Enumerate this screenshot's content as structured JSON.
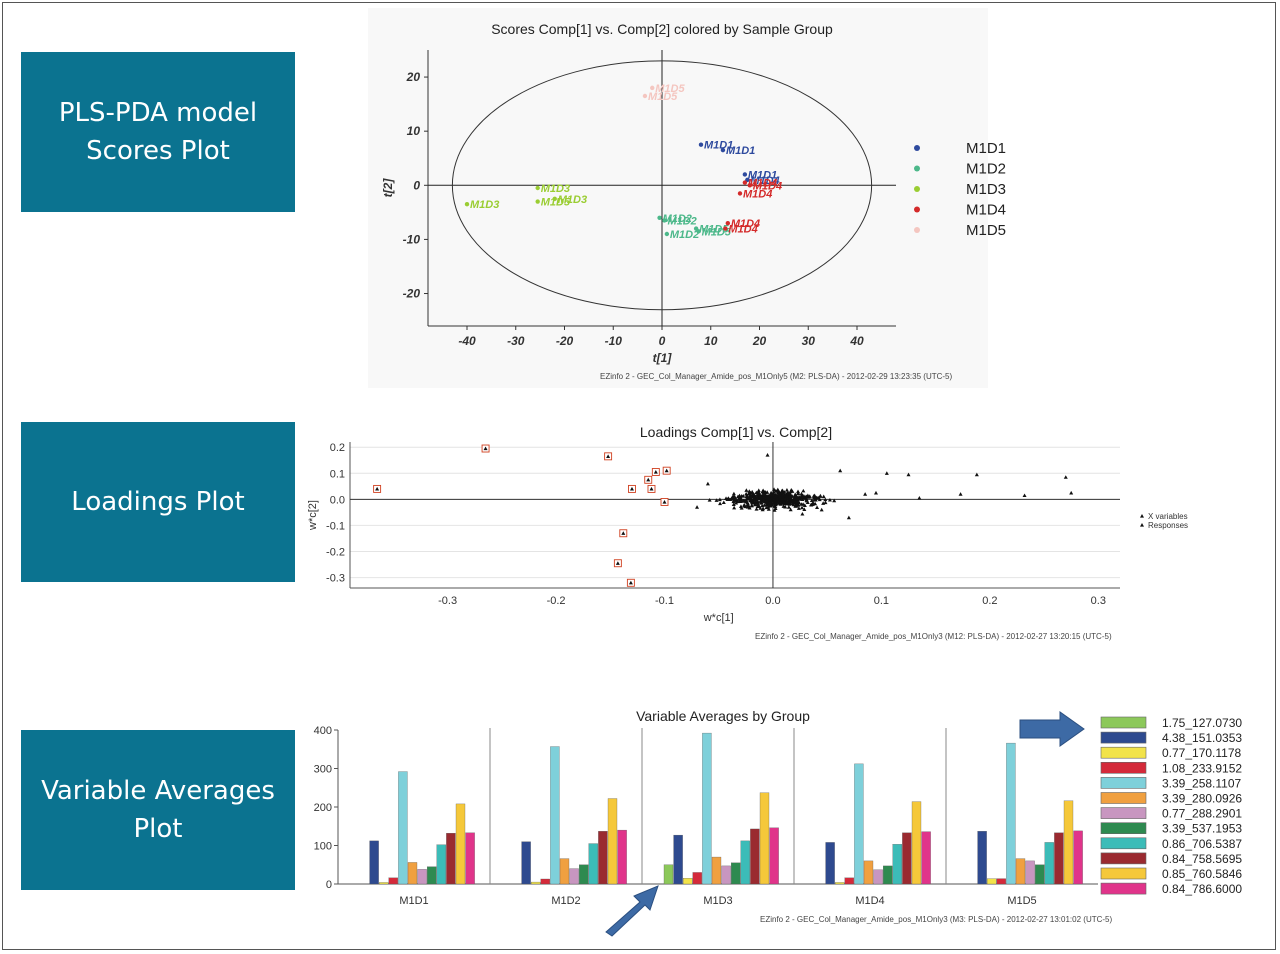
{
  "labels": {
    "scores": [
      "PLS-PDA model",
      "Scores Plot"
    ],
    "loadings": [
      "Loadings Plot"
    ],
    "averages": [
      "Variable Averages",
      "Plot"
    ]
  },
  "colors": {
    "label_bg": "#0b7390",
    "arrow": "#3d6aa5"
  },
  "chart_data": [
    {
      "type": "scatter",
      "title": "Scores Comp[1] vs. Comp[2] colored by Sample Group",
      "xlabel": "t[1]",
      "ylabel": "t[2]",
      "xlim": [
        -48,
        48
      ],
      "ylim": [
        -26,
        25
      ],
      "xticks": [
        -40,
        -30,
        -20,
        -10,
        0,
        10,
        20,
        30,
        40
      ],
      "yticks": [
        -20,
        -10,
        0,
        10,
        20
      ],
      "ellipse": {
        "center": [
          0,
          0
        ],
        "rx": 43,
        "ry": 23
      },
      "legend_position": "right",
      "footer": "EZinfo 2 - GEC_Col_Manager_Amide_pos_M1Only5 (M2: PLS-DA) - 2012-02-29 13:23:35 (UTC-5)",
      "series": [
        {
          "name": "M1D1",
          "color": "#2e4a9e",
          "points": [
            {
              "x": 8,
              "y": 7.5,
              "label": "M1D1"
            },
            {
              "x": 12.5,
              "y": 6.5,
              "label": "M1D1"
            },
            {
              "x": 17,
              "y": 2,
              "label": "M1D1"
            },
            {
              "x": 17.5,
              "y": 1,
              "label": "M1D4"
            }
          ]
        },
        {
          "name": "M1D2",
          "color": "#4cb88a",
          "points": [
            {
              "x": -0.5,
              "y": -6,
              "label": "M1D2"
            },
            {
              "x": 0.5,
              "y": -6.5,
              "label": "M1D2"
            },
            {
              "x": 1,
              "y": -9,
              "label": "M1D2"
            },
            {
              "x": 7,
              "y": -8,
              "label": "M1D5"
            },
            {
              "x": 7.5,
              "y": -8.5,
              "label": "M1D5"
            }
          ]
        },
        {
          "name": "M1D3",
          "color": "#9acd32",
          "points": [
            {
              "x": -40,
              "y": -3.5,
              "label": "M1D3"
            },
            {
              "x": -25.5,
              "y": -0.5,
              "label": "M1D3"
            },
            {
              "x": -25.5,
              "y": -3,
              "label": "M1D5"
            },
            {
              "x": -22,
              "y": -2.5,
              "label": "M1D3"
            }
          ]
        },
        {
          "name": "M1D4",
          "color": "#d42a2a",
          "points": [
            {
              "x": 17,
              "y": 0.5,
              "label": "M1D4"
            },
            {
              "x": 18,
              "y": 0,
              "label": "M1D4"
            },
            {
              "x": 16,
              "y": -1.5,
              "label": "M1D4"
            },
            {
              "x": 13.5,
              "y": -7,
              "label": "M1D4"
            },
            {
              "x": 13,
              "y": -8,
              "label": "M1D4"
            }
          ]
        },
        {
          "name": "M1D5",
          "color": "#f4c6c0",
          "points": [
            {
              "x": -2,
              "y": 18,
              "label": "M1D5"
            },
            {
              "x": -3.5,
              "y": 16.5,
              "label": "M1D5"
            }
          ]
        }
      ]
    },
    {
      "type": "scatter",
      "title": "Loadings Comp[1] vs. Comp[2]",
      "xlabel": "w*c[1]",
      "ylabel": "w*c[2]",
      "xlim": [
        -0.39,
        0.32
      ],
      "ylim": [
        -0.34,
        0.22
      ],
      "xticks": [
        -0.3,
        -0.2,
        -0.1,
        -0.0,
        0.1,
        0.2,
        0.3
      ],
      "yticks": [
        0.2,
        0.1,
        -0.0,
        -0.1,
        -0.2,
        -0.3
      ],
      "legend": [
        "X variables",
        "Responses"
      ],
      "legend_position": "right",
      "footer": "EZinfo 2 - GEC_Col_Manager_Amide_pos_M1Only3 (M12: PLS-DA) - 2012-02-27 13:20:15 (UTC-5)",
      "highlighted_points": [
        {
          "x": -0.365,
          "y": 0.04
        },
        {
          "x": -0.265,
          "y": 0.195
        },
        {
          "x": -0.152,
          "y": 0.165
        },
        {
          "x": -0.13,
          "y": 0.04
        },
        {
          "x": -0.115,
          "y": 0.075
        },
        {
          "x": -0.112,
          "y": 0.04
        },
        {
          "x": -0.108,
          "y": 0.105
        },
        {
          "x": -0.098,
          "y": 0.11
        },
        {
          "x": -0.1,
          "y": -0.01
        },
        {
          "x": -0.138,
          "y": -0.13
        },
        {
          "x": -0.143,
          "y": -0.245
        },
        {
          "x": -0.131,
          "y": -0.32
        }
      ],
      "outlier_points": [
        {
          "x": 0.275,
          "y": 0.025
        },
        {
          "x": 0.27,
          "y": 0.085
        },
        {
          "x": 0.232,
          "y": 0.015
        },
        {
          "x": 0.188,
          "y": 0.095
        },
        {
          "x": 0.173,
          "y": 0.02
        },
        {
          "x": 0.135,
          "y": 0.005
        },
        {
          "x": 0.125,
          "y": 0.095
        },
        {
          "x": 0.105,
          "y": 0.1
        },
        {
          "x": 0.095,
          "y": 0.025
        },
        {
          "x": 0.085,
          "y": 0.02
        },
        {
          "x": 0.062,
          "y": 0.11
        },
        {
          "x": -0.005,
          "y": 0.17
        },
        {
          "x": -0.07,
          "y": -0.03
        },
        {
          "x": -0.06,
          "y": 0.06
        },
        {
          "x": 0.07,
          "y": -0.07
        }
      ],
      "cluster": {
        "center": [
          0.0,
          0.0
        ],
        "spread_x": 0.028,
        "spread_y": 0.022,
        "count": 520
      }
    },
    {
      "type": "bar",
      "title": "Variable Averages by Group",
      "categories": [
        "M1D1",
        "M1D2",
        "M1D3",
        "M1D4",
        "M1D5"
      ],
      "ylim": [
        0,
        400
      ],
      "yticks": [
        0,
        100,
        200,
        300,
        400
      ],
      "legend_position": "right",
      "footer": "EZinfo 2 - GEC_Col_Manager_Amide_pos_M1Only3 (M3: PLS-DA) - 2012-02-27 13:01:02 (UTC-5)",
      "series": [
        {
          "name": "1.75_127.0730",
          "color": "#8cc85a",
          "values": [
            0,
            0,
            50,
            0,
            0
          ]
        },
        {
          "name": "4.38_151.0353",
          "color": "#2e4a8f",
          "values": [
            112,
            110,
            127,
            108,
            137
          ]
        },
        {
          "name": "0.77_170.1178",
          "color": "#f2e34a",
          "values": [
            4,
            5,
            15,
            4,
            14
          ]
        },
        {
          "name": "1.08_233.9152",
          "color": "#d42a3a",
          "values": [
            16,
            13,
            30,
            16,
            14
          ]
        },
        {
          "name": "3.39_258.1107",
          "color": "#7ed0da",
          "values": [
            292,
            357,
            392,
            312,
            366
          ]
        },
        {
          "name": "3.39_280.0926",
          "color": "#f0a040",
          "values": [
            56,
            66,
            70,
            60,
            66
          ]
        },
        {
          "name": "0.77_288.2901",
          "color": "#c896c0",
          "values": [
            38,
            40,
            47,
            37,
            60
          ]
        },
        {
          "name": "3.39_537.1953",
          "color": "#2e8a50",
          "values": [
            45,
            50,
            55,
            47,
            50
          ]
        },
        {
          "name": "0.86_706.5387",
          "color": "#3cbcb8",
          "values": [
            102,
            105,
            112,
            103,
            108
          ]
        },
        {
          "name": "0.84_758.5695",
          "color": "#9a2a30",
          "values": [
            132,
            137,
            143,
            133,
            133
          ]
        },
        {
          "name": "0.85_760.5846",
          "color": "#f5c83a",
          "values": [
            208,
            222,
            237,
            214,
            216
          ]
        },
        {
          "name": "0.84_786.6000",
          "color": "#e0348a",
          "values": [
            133,
            140,
            146,
            136,
            138
          ]
        }
      ]
    }
  ]
}
